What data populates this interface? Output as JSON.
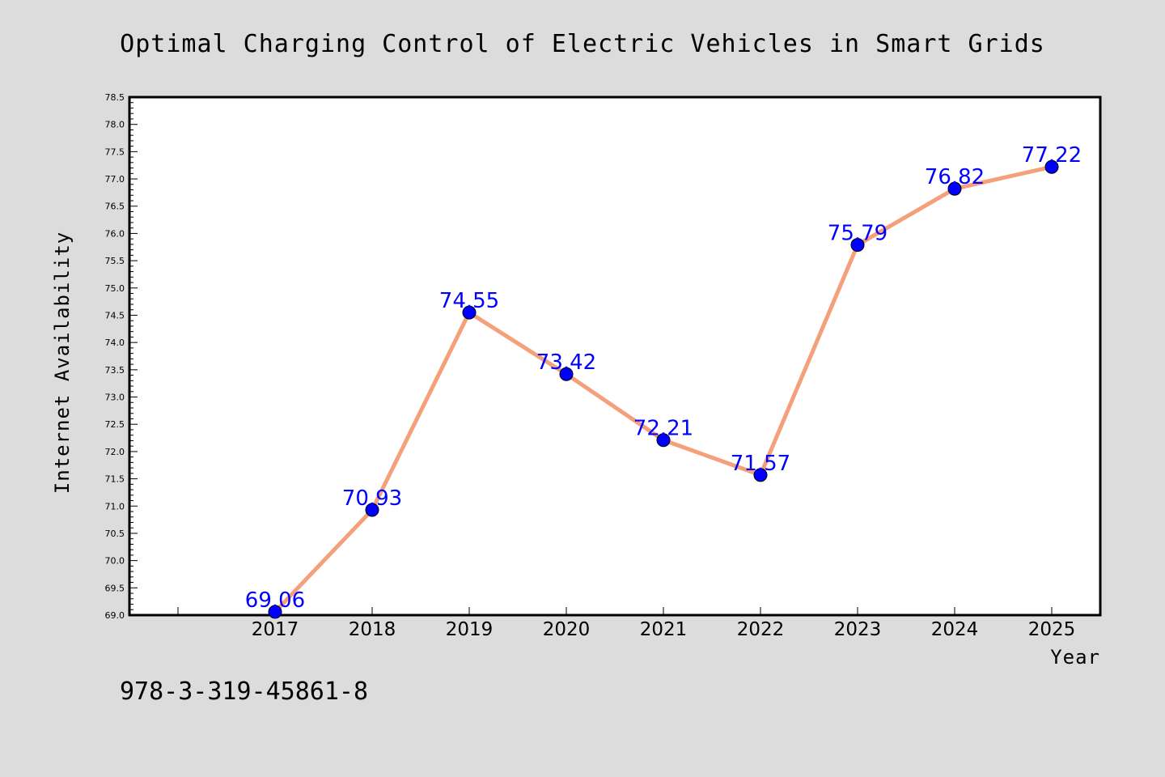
{
  "chart_data": {
    "type": "line",
    "title": "Optimal Charging Control of Electric Vehicles in Smart Grids",
    "xlabel": "Year",
    "ylabel": "Internet Availability",
    "categories": [
      "2017",
      "2018",
      "2019",
      "2020",
      "2021",
      "2022",
      "2023",
      "2024",
      "2025"
    ],
    "values": [
      69.06,
      70.93,
      74.55,
      73.42,
      72.21,
      71.57,
      75.79,
      76.82,
      77.22
    ],
    "data_labels": [
      "69.06",
      "70.93",
      "74.55",
      "73.42",
      "72.21",
      "71.57",
      "75.79",
      "76.82",
      "77.22"
    ],
    "ylim": [
      69.0,
      78.5
    ],
    "yticks": [
      "69.0",
      "69.5",
      "70.0",
      "70.5",
      "71.0",
      "71.5",
      "72.0",
      "72.5",
      "73.0",
      "73.5",
      "74.0",
      "74.5",
      "75.0",
      "75.5",
      "76.0",
      "76.5",
      "77.0",
      "77.5",
      "78.0",
      "78.5"
    ],
    "grid": false,
    "line_color": "#f4a07a",
    "marker_color": "#0000ff",
    "label_color": "#0000ff"
  },
  "footer_text": "978-3-319-45861-8"
}
